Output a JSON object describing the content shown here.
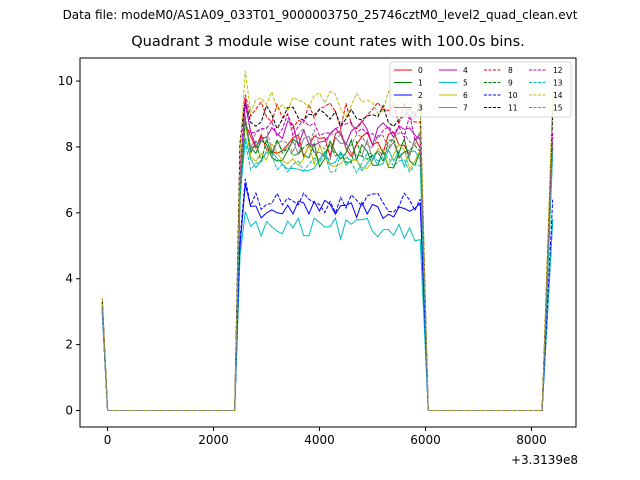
{
  "suptitle": "Data file: modeM0/AS1A09_033T01_9000003750_25746cztM0_level2_quad_clean.evt",
  "chart_data": {
    "type": "line",
    "title": "Quadrant 3 module wise count rates with 100.0s bins.",
    "xlabel": "",
    "ylabel": "",
    "x_offset_label": "+3.3139e8",
    "xlim": [
      -520,
      8840
    ],
    "ylim": [
      -0.5,
      10.7
    ],
    "xticks": [
      0,
      2000,
      4000,
      6000,
      8000
    ],
    "xtick_labels": [
      "0",
      "2000",
      "4000",
      "6000",
      "8000"
    ],
    "yticks": [
      0,
      2,
      4,
      6,
      8,
      10
    ],
    "ytick_labels": [
      "0",
      "2",
      "4",
      "6",
      "8",
      "10"
    ],
    "grid": false,
    "legend_position": "top-right",
    "legend_columns": 4,
    "segments": [
      {
        "start": -100,
        "end": 0
      },
      {
        "start": 0,
        "end": 2400
      },
      {
        "start": 2400,
        "end": 5900
      },
      {
        "start": 5900,
        "end": 6050
      },
      {
        "start": 6050,
        "end": 8200
      },
      {
        "start": 8200,
        "end": 8400
      }
    ],
    "series": [
      {
        "name": "0",
        "color": "#ff0000",
        "dash": "solid",
        "start_value": 3.4,
        "plateau_mean": 8.1,
        "amplitude": 0.45,
        "end_value": 8.3
      },
      {
        "name": "1",
        "color": "#008000",
        "dash": "solid",
        "start_value": 3.2,
        "plateau_mean": 7.8,
        "amplitude": 0.45,
        "end_value": 8.0
      },
      {
        "name": "2",
        "color": "#0000ff",
        "dash": "solid",
        "start_value": 3.0,
        "plateau_mean": 6.1,
        "amplitude": 0.3,
        "end_value": 5.8
      },
      {
        "name": "3",
        "color": "#00bfbf",
        "dash": "solid",
        "start_value": 2.9,
        "plateau_mean": 5.5,
        "amplitude": 0.35,
        "end_value": 5.8
      },
      {
        "name": "4",
        "color": "#bf00bf",
        "dash": "solid",
        "start_value": 3.1,
        "plateau_mean": 8.4,
        "amplitude": 0.4,
        "end_value": 8.2
      },
      {
        "name": "5",
        "color": "#00bfbf",
        "dash": "solid",
        "start_value": 3.0,
        "plateau_mean": 7.6,
        "amplitude": 0.35,
        "end_value": 7.9
      },
      {
        "name": "6",
        "color": "#bfbf00",
        "dash": "solid",
        "start_value": 3.1,
        "plateau_mean": 7.7,
        "amplitude": 0.4,
        "end_value": 8.0
      },
      {
        "name": "7",
        "color": "#808080",
        "dash": "solid",
        "start_value": 3.2,
        "plateau_mean": 8.0,
        "amplitude": 0.4,
        "end_value": 8.1
      },
      {
        "name": "8",
        "color": "#ff0000",
        "dash": "dashed",
        "start_value": 3.3,
        "plateau_mean": 9.0,
        "amplitude": 0.45,
        "end_value": 9.2
      },
      {
        "name": "9",
        "color": "#008000",
        "dash": "dashed",
        "start_value": 3.1,
        "plateau_mean": 7.9,
        "amplitude": 0.4,
        "end_value": 8.1
      },
      {
        "name": "10",
        "color": "#0000ff",
        "dash": "dashed",
        "start_value": 3.0,
        "plateau_mean": 6.3,
        "amplitude": 0.3,
        "end_value": 6.4
      },
      {
        "name": "11",
        "color": "#000000",
        "dash": "dashed",
        "start_value": 3.3,
        "plateau_mean": 8.9,
        "amplitude": 0.4,
        "end_value": 9.0
      },
      {
        "name": "12",
        "color": "#bf00bf",
        "dash": "dashed",
        "start_value": 3.1,
        "plateau_mean": 8.6,
        "amplitude": 0.4,
        "end_value": 8.4
      },
      {
        "name": "13",
        "color": "#00bfbf",
        "dash": "dashed",
        "start_value": 3.0,
        "plateau_mean": 7.5,
        "amplitude": 0.35,
        "end_value": 7.8
      },
      {
        "name": "14",
        "color": "#bfbf00",
        "dash": "dashed",
        "start_value": 3.4,
        "plateau_mean": 9.3,
        "amplitude": 0.4,
        "end_value": 9.6
      },
      {
        "name": "15",
        "color": "#808080",
        "dash": "dashed",
        "start_value": 3.2,
        "plateau_mean": 8.2,
        "amplitude": 0.4,
        "end_value": 8.3
      }
    ]
  }
}
